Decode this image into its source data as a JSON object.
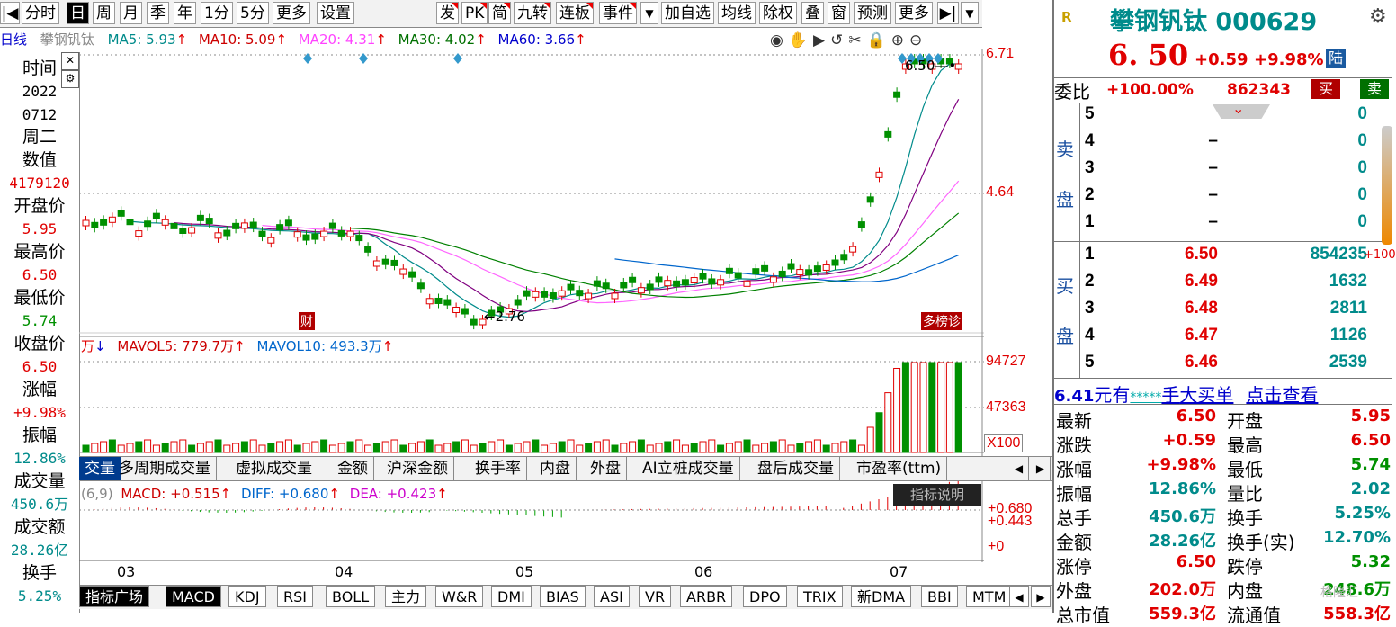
{
  "toolbar": {
    "left_items": [
      "分时",
      "日",
      "周",
      "月",
      "季",
      "年",
      "1分",
      "5分",
      "更多",
      "设置"
    ],
    "right_items": [
      "发",
      "PK",
      "简",
      "九转",
      "连板",
      "事件",
      "加自选",
      "均线",
      "除权",
      "叠",
      "窗",
      "预测",
      "更多"
    ],
    "flagged": [
      "发",
      "PK",
      "简",
      "九转",
      "连板",
      "事件"
    ]
  },
  "chart": {
    "type_label": "日线",
    "name_label": "攀钢钒钛",
    "ma5": "MA5: 5.93",
    "ma10": "MA10: 5.09",
    "ma20": "MA20: 4.31",
    "ma30": "MA30: 4.02",
    "ma60": "MA60: 3.66",
    "price_top": "6.71",
    "price_mid": "4.64",
    "high_marker": "6.50",
    "low_marker": "2.76",
    "badge_left": "财",
    "badge_right": "多榜诊",
    "months": [
      "03",
      "04",
      "05",
      "06",
      "07"
    ]
  },
  "volume": {
    "label_unit": "万",
    "mavol5": "MAVOL5: 779.7万",
    "mavol10": "MAVOL10: 493.3万",
    "axis_top": "94727",
    "axis_mid": "47363",
    "axis_unit": "X100"
  },
  "volume_tabs": [
    "交量",
    "多周期成交量",
    "虚拟成交量",
    "金额",
    "沪深金额",
    "换手率",
    "内盘",
    "外盘",
    "AI立桩成交量",
    "盘后成交量",
    "市盈率(ttm)"
  ],
  "macd": {
    "params": "(6,9)",
    "macd": "MACD: +0.515",
    "diff": "DIFF: +0.680",
    "dea": "DEA: +0.423",
    "axis_1": "+0.680",
    "axis_2": "+0.443",
    "axis_3": "+0",
    "help_btn": "指标说明"
  },
  "indicator_tabs": [
    "指标广场",
    "MACD",
    "KDJ",
    "RSI",
    "BOLL",
    "主力",
    "W&R",
    "DMI",
    "BIAS",
    "ASI",
    "VR",
    "ARBR",
    "DPO",
    "TRIX",
    "新DMA",
    "BBI",
    "MTM"
  ],
  "left_info": [
    {
      "k": "时间",
      "v": "2022",
      "v2": "0712",
      "v3": "周二"
    },
    {
      "k": "数值",
      "v": "4179120"
    },
    {
      "k": "开盘价",
      "v": "5.95"
    },
    {
      "k": "最高价",
      "v": "6.50"
    },
    {
      "k": "最低价",
      "v": "5.74"
    },
    {
      "k": "收盘价",
      "v": "6.50"
    },
    {
      "k": "涨幅",
      "v": "+9.98%"
    },
    {
      "k": "振幅",
      "v": "12.86%"
    },
    {
      "k": "成交量",
      "v": "450.6万"
    },
    {
      "k": "成交额",
      "v": "28.26亿"
    },
    {
      "k": "换手",
      "v": "5.25%"
    }
  ],
  "quote": {
    "badge": "R",
    "name": "攀钢钒钛 000629",
    "price": "6. 50",
    "change": "+0.59",
    "pct": "+9.98%",
    "tag": "陆",
    "weibi_label": "委比",
    "weibi_val": "+100.00%",
    "weibi_vol": "862343",
    "buy_btn": "买",
    "sell_btn": "卖",
    "sell_label": [
      "卖",
      "盘"
    ],
    "buy_label": [
      "买",
      "盘"
    ],
    "asks": [
      {
        "lv": "5",
        "price": "",
        "vol": "0"
      },
      {
        "lv": "4",
        "price": "–",
        "vol": "0"
      },
      {
        "lv": "3",
        "price": "–",
        "vol": "0"
      },
      {
        "lv": "2",
        "price": "–",
        "vol": "0"
      },
      {
        "lv": "1",
        "price": "–",
        "vol": "0"
      }
    ],
    "bids": [
      {
        "lv": "1",
        "price": "6.50",
        "vol": "854235"
      },
      {
        "lv": "2",
        "price": "6.49",
        "vol": "1632"
      },
      {
        "lv": "3",
        "price": "6.48",
        "vol": "2811"
      },
      {
        "lv": "4",
        "price": "6.47",
        "vol": "1126"
      },
      {
        "lv": "5",
        "price": "6.46",
        "vol": "2539"
      }
    ],
    "side_tag": "+100",
    "banner_price": "6.41",
    "banner_text1": "元有",
    "banner_stars": "*****",
    "banner_text2": "手",
    "banner_text3": "大买单",
    "banner_text4": "点击查看",
    "stats": [
      {
        "k1": "最新",
        "v1": "6.50",
        "k2": "开盘",
        "v2": "5.95"
      },
      {
        "k1": "涨跌",
        "v1": "+0.59",
        "k2": "最高",
        "v2": "6.50"
      },
      {
        "k1": "涨幅",
        "v1": "+9.98%",
        "k2": "最低",
        "v2": "5.74"
      },
      {
        "k1": "振幅",
        "v1": "12.86%",
        "k2": "量比",
        "v2": "2.02"
      },
      {
        "k1": "总手",
        "v1": "450.6万",
        "k2": "换手",
        "v2": "5.25%"
      },
      {
        "k1": "金额",
        "v1": "28.26亿",
        "k2": "换手(实)",
        "v2": "12.70%"
      },
      {
        "k1": "涨停",
        "v1": "6.50",
        "k2": "跌停",
        "v2": "5.32"
      },
      {
        "k1": "外盘",
        "v1": "202.0万",
        "k2": "内盘",
        "v2": "248.6万"
      },
      {
        "k1": "总市值",
        "v1": "559.3亿",
        "k2": "流通值",
        "v2": "558.3亿"
      }
    ],
    "watermark": "格隆汇"
  },
  "colors": {
    "up": "#e00000",
    "down": "#009000",
    "ma5": "#000000",
    "ma10": "#cc9900",
    "ma20": "#ff44ff",
    "ma30": "#008000",
    "ma60": "#0000cc"
  }
}
